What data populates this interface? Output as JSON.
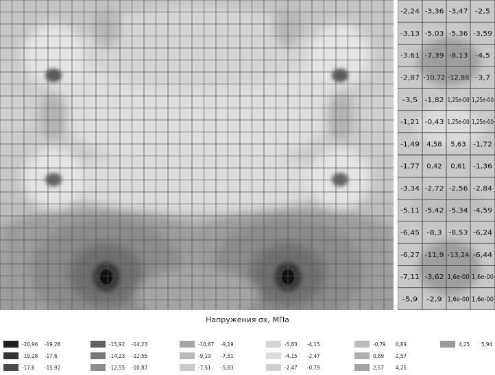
{
  "legend": {
    "title": "Напружения σx, МПа",
    "entries": [
      {
        "from": "-20,96",
        "to": "-19,28",
        "color": "#1e1e1e"
      },
      {
        "from": "-19,28",
        "to": "-17,6",
        "color": "#333333"
      },
      {
        "from": "-17,6",
        "to": "-15,92",
        "color": "#4b4b4b"
      },
      {
        "from": "-15,92",
        "to": "-14,23",
        "color": "#626262"
      },
      {
        "from": "-14,23",
        "to": "-12,55",
        "color": "#787878"
      },
      {
        "from": "-12,55",
        "to": "-10,87",
        "color": "#8e8e8e"
      },
      {
        "from": "-10,87",
        "to": "-9,19",
        "color": "#a6a6a6"
      },
      {
        "from": "-9,19",
        "to": "-7,51",
        "color": "#bababa"
      },
      {
        "from": "-7,51",
        "to": "-5,83",
        "color": "#cacaca"
      },
      {
        "from": "-5,83",
        "to": "-4,15",
        "color": "#d4d4d4"
      },
      {
        "from": "-4,15",
        "to": "-2,47",
        "color": "#dcdcdc"
      },
      {
        "from": "-2,47",
        "to": "-0,79",
        "color": "#cfcfcf"
      },
      {
        "from": "-0,79",
        "to": "0,89",
        "color": "#bcbcbc"
      },
      {
        "from": "0,89",
        "to": "2,57",
        "color": "#b0b0b0"
      },
      {
        "from": "2,57",
        "to": "4,25",
        "color": "#a4a4a4"
      },
      {
        "from": "4,25",
        "to": "5,94",
        "color": "#999999"
      }
    ]
  },
  "detail_table": {
    "rows": [
      [
        "-2,24",
        "-3,36",
        "-3,47",
        "-2,5"
      ],
      [
        "-3,13",
        "-5,03",
        "-5,36",
        "-3,59"
      ],
      [
        "-3,61",
        "-7,39",
        "-8,13",
        "-4,5"
      ],
      [
        "-2,87",
        "-10,72",
        "-12,88",
        "-3,7"
      ],
      [
        "-3,5",
        "-1,82",
        "1,25e-00",
        "1,25e-00"
      ],
      [
        "-1,21",
        "-0,43",
        "1,25e-00",
        "1,25e-00"
      ],
      [
        "-1,49",
        "4,58",
        "5,63",
        "-1,72"
      ],
      [
        "-1,77",
        "0,42",
        "0,61",
        "-1,36"
      ],
      [
        "-3,34",
        "-2,72",
        "-2,56",
        "-2,84"
      ],
      [
        "-5,11",
        "-5,42",
        "-5,34",
        "-4,59"
      ],
      [
        "-6,45",
        "-8,3",
        "-8,53",
        "-6,24"
      ],
      [
        "-6,27",
        "-11,9",
        "-13,24",
        "-6,44"
      ],
      [
        "-7,11",
        "-3,62",
        "1,6e-00",
        "1,6e-00"
      ],
      [
        "-5,9",
        "-2,9",
        "1,6e-00",
        "1,6e-00"
      ]
    ]
  }
}
